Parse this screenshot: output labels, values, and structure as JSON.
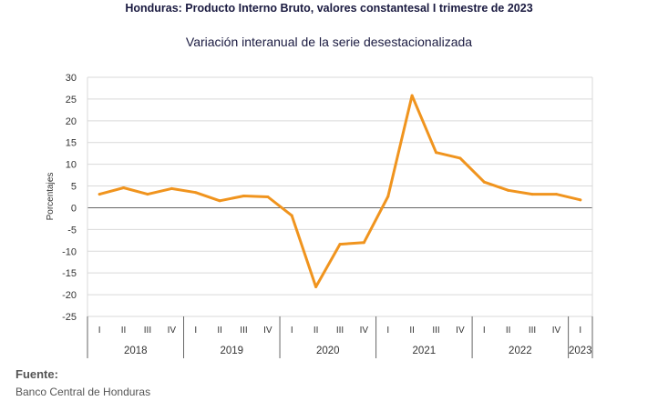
{
  "header": {
    "title": "Honduras: Producto Interno Bruto, valores constantesal I trimestre de 2023",
    "subtitle": "Variación interanual de la serie desestacionalizada"
  },
  "footer": {
    "source_label": "Fuente:",
    "source_text": "Banco Central de Honduras"
  },
  "chart_data": {
    "type": "line",
    "ylabel": "Porcentajes",
    "ylim": [
      -25,
      30
    ],
    "yticks": [
      30,
      25,
      20,
      15,
      10,
      5,
      0,
      -5,
      -10,
      -15,
      -20,
      -25
    ],
    "grid": true,
    "line_color": "#F0941E",
    "quarters": [
      "I",
      "II",
      "III",
      "IV",
      "I",
      "II",
      "III",
      "IV",
      "I",
      "II",
      "III",
      "IV",
      "I",
      "II",
      "III",
      "IV",
      "I",
      "II",
      "III",
      "IV",
      "I"
    ],
    "years": [
      {
        "label": "2018",
        "start": 0,
        "count": 4
      },
      {
        "label": "2019",
        "start": 4,
        "count": 4
      },
      {
        "label": "2020",
        "start": 8,
        "count": 4
      },
      {
        "label": "2021",
        "start": 12,
        "count": 4
      },
      {
        "label": "2022",
        "start": 16,
        "count": 4
      },
      {
        "label": "2023",
        "start": 20,
        "count": 1
      }
    ],
    "values": [
      3.1,
      4.6,
      3.1,
      4.4,
      3.5,
      1.6,
      2.7,
      2.5,
      -1.8,
      -18.2,
      -8.4,
      -8.0,
      2.6,
      25.8,
      12.7,
      11.4,
      5.9,
      4.0,
      3.1,
      3.1,
      1.8
    ]
  }
}
